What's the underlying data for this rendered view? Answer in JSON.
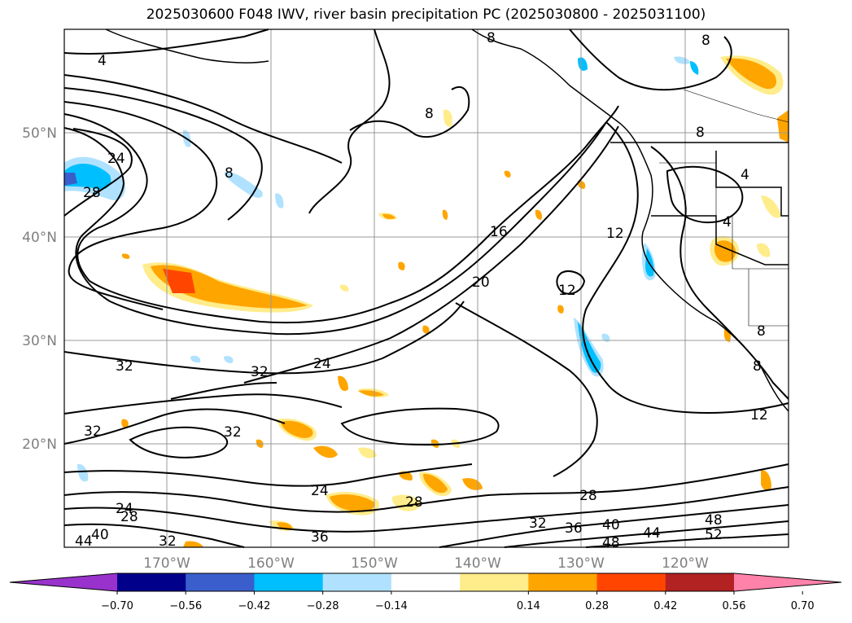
{
  "title": "2025030600 F048 IWV, river basin precipitation PC (2025030800 - 2025031100)",
  "map": {
    "lat_labels": [
      "50°N",
      "40°N",
      "30°N",
      "20°N"
    ],
    "lon_labels": [
      "170°W",
      "160°W",
      "150°W",
      "140°W",
      "130°W",
      "120°W"
    ],
    "grid": true
  },
  "iwv_contour_labels": [
    "4",
    "8",
    "8",
    "8",
    "8",
    "4",
    "4",
    "8",
    "16",
    "12",
    "12",
    "20",
    "24",
    "24",
    "28",
    "32",
    "32",
    "32",
    "32",
    "24",
    "28",
    "28",
    "32",
    "36",
    "40",
    "44",
    "48",
    "52",
    "48",
    "36",
    "40",
    "44",
    "24",
    "28",
    "32",
    "12",
    "8",
    "8"
  ],
  "colorbar": {
    "ticks": [
      "−0.70",
      "−0.56",
      "−0.42",
      "−0.28",
      "−0.14",
      "0.14",
      "0.28",
      "0.42",
      "0.56",
      "0.70"
    ],
    "colors": [
      "#9932cc",
      "#00008b",
      "#3a5fcd",
      "#00bfff",
      "#b0e2ff",
      "#ffffff",
      "#ffec8b",
      "#ffa500",
      "#ff4500",
      "#b22222",
      "#ff82ab"
    ]
  }
}
